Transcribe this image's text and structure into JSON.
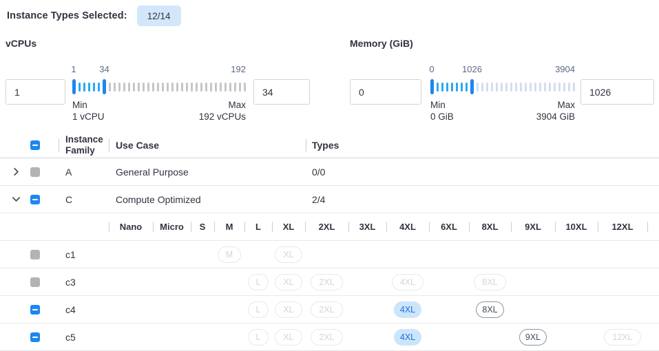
{
  "topbar": {
    "label": "Instance Types Selected:",
    "badge": "12/14"
  },
  "filters": {
    "vcpus": {
      "title": "vCPUs",
      "from_value": "1",
      "to_value": "34",
      "scale": {
        "min_label": "1",
        "current_label": "34",
        "max_label": "192"
      },
      "min_caption": "Min",
      "min_detail": "1 vCPU",
      "max_caption": "Max",
      "max_detail": "192 vCPUs"
    },
    "memory": {
      "title": "Memory (GiB)",
      "from_value": "0",
      "to_value": "1026",
      "scale": {
        "min_label": "0",
        "current_label": "1026",
        "max_label": "3904"
      },
      "min_caption": "Min",
      "min_detail": "0 GiB",
      "max_caption": "Max",
      "max_detail": "3904 GiB"
    }
  },
  "table": {
    "header": {
      "family": "Instance Family",
      "use_case": "Use Case",
      "types": "Types",
      "checkbox": "indeterminate"
    },
    "size_columns": [
      "Nano",
      "Micro",
      "S",
      "M",
      "L",
      "XL",
      "2XL",
      "3XL",
      "4XL",
      "6XL",
      "8XL",
      "9XL",
      "10XL",
      "12XL"
    ],
    "rows": [
      {
        "family": "A",
        "use_case": "General Purpose",
        "types": "0/0",
        "checkbox": "disabled",
        "expanded": false,
        "children": []
      },
      {
        "family": "C",
        "use_case": "Compute Optimized",
        "types": "2/4",
        "checkbox": "indeterminate",
        "expanded": true,
        "children": [
          {
            "name": "c1",
            "checkbox": "disabled",
            "sizes": [
              {
                "label": "M",
                "state": "disabled"
              },
              {
                "label": "XL",
                "state": "disabled"
              }
            ]
          },
          {
            "name": "c3",
            "checkbox": "disabled",
            "sizes": [
              {
                "label": "L",
                "state": "disabled"
              },
              {
                "label": "XL",
                "state": "disabled"
              },
              {
                "label": "2XL",
                "state": "disabled"
              },
              {
                "label": "4XL",
                "state": "disabled"
              },
              {
                "label": "8XL",
                "state": "disabled"
              }
            ]
          },
          {
            "name": "c4",
            "checkbox": "indeterminate",
            "sizes": [
              {
                "label": "L",
                "state": "disabled"
              },
              {
                "label": "XL",
                "state": "disabled"
              },
              {
                "label": "2XL",
                "state": "disabled"
              },
              {
                "label": "4XL",
                "state": "selected"
              },
              {
                "label": "8XL",
                "state": "enabled"
              }
            ]
          },
          {
            "name": "c5",
            "checkbox": "indeterminate",
            "sizes": [
              {
                "label": "L",
                "state": "disabled"
              },
              {
                "label": "XL",
                "state": "disabled"
              },
              {
                "label": "2XL",
                "state": "disabled"
              },
              {
                "label": "4XL",
                "state": "selected"
              },
              {
                "label": "9XL",
                "state": "enabled"
              },
              {
                "label": "12XL",
                "state": "disabled"
              }
            ]
          }
        ]
      }
    ]
  },
  "colors": {
    "accent_blue": "#1E86F0",
    "tick_selected": "#2BA7F2",
    "tick_unselected_vcpus": "#C6C6C6",
    "tick_unselected_memory": "#D4DDEF",
    "badge_bg": "#D2E7FA",
    "pill_selected_bg": "#CBE5FB",
    "pill_selected_text": "#1B6FDD",
    "pill_enabled_border": "#8B95A3",
    "pill_disabled_border": "#E7E9EC",
    "disabled_checkbox": "#B3B3B3",
    "text": "#31333F",
    "scale_label": "#5C6B84"
  }
}
